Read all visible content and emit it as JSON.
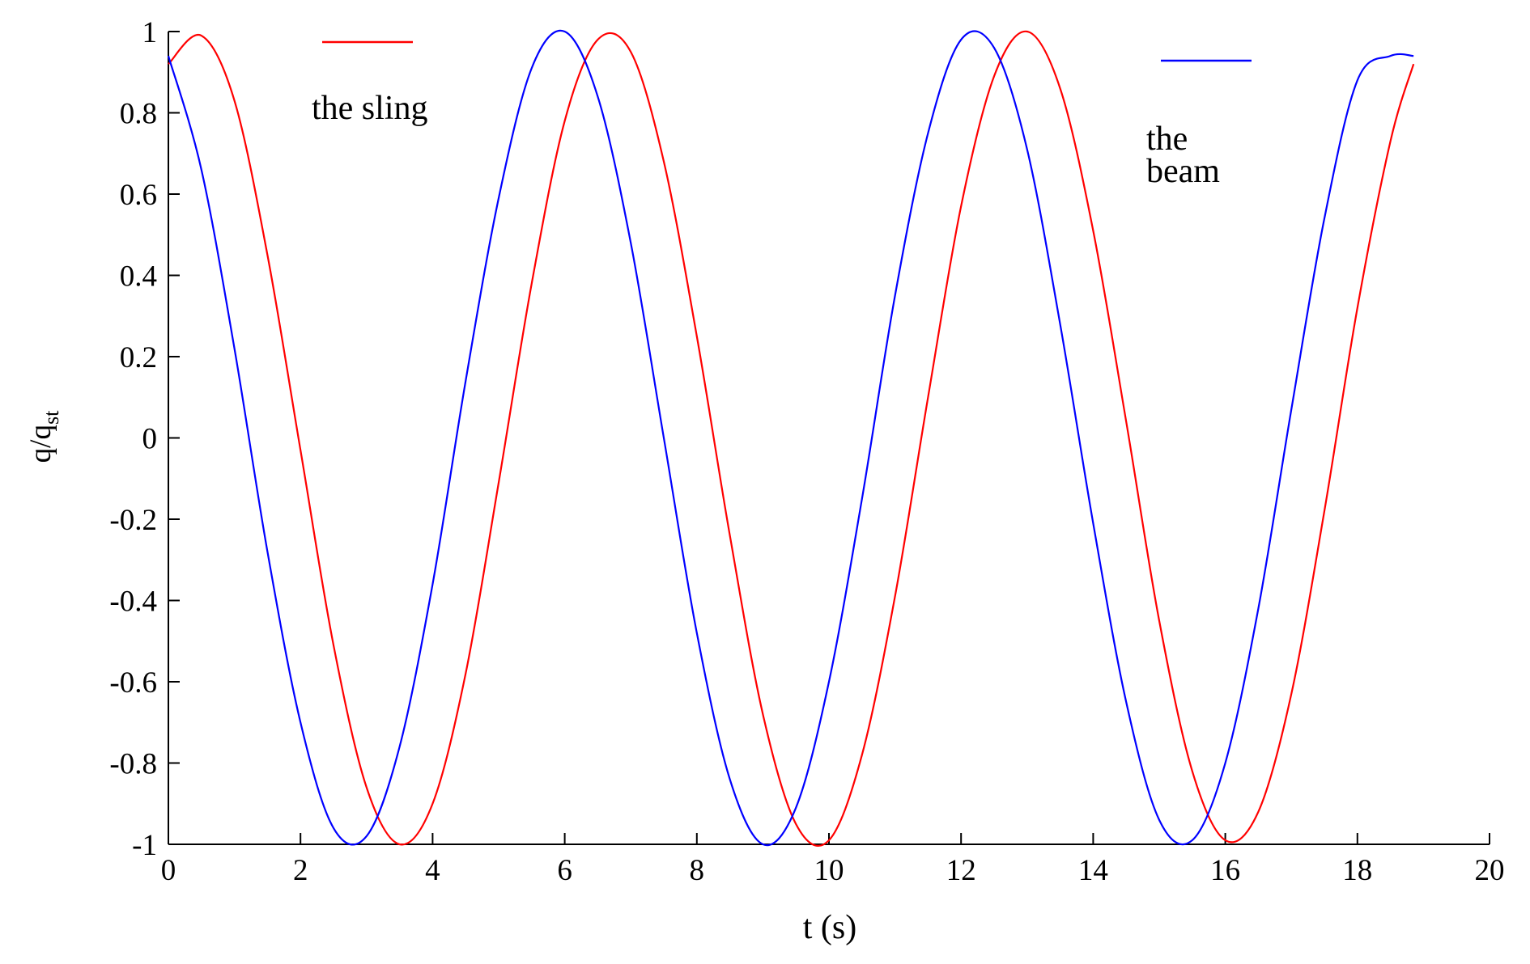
{
  "chart_data": {
    "type": "line",
    "xlabel": "t (s)",
    "ylabel": "q/q",
    "ylabel_subscript": "st",
    "x": [
      0,
      0.5,
      1,
      1.5,
      2,
      2.5,
      3,
      3.5,
      4,
      4.5,
      5,
      5.5,
      6,
      6.5,
      7,
      7.5,
      8,
      8.5,
      9,
      9.5,
      10,
      10.5,
      11,
      11.5,
      12,
      12.5,
      13,
      13.5,
      14,
      14.5,
      15,
      15.5,
      16,
      16.5,
      17,
      17.5,
      18,
      18.5,
      18.85
    ],
    "series": [
      {
        "name": "the sling",
        "color": "#ff0000",
        "values": [
          0.92,
          0.99,
          0.83,
          0.45,
          -0.03,
          -0.51,
          -0.86,
          -1.0,
          -0.9,
          -0.58,
          -0.11,
          0.38,
          0.78,
          0.98,
          0.95,
          0.68,
          0.25,
          -0.24,
          -0.68,
          -0.95,
          -0.99,
          -0.78,
          -0.39,
          0.1,
          0.57,
          0.89,
          1.0,
          0.86,
          0.51,
          0.04,
          -0.45,
          -0.82,
          -0.99,
          -0.92,
          -0.63,
          -0.18,
          0.32,
          0.73,
          0.92
        ]
      },
      {
        "name": "the beam",
        "color": "#0000ff",
        "values": [
          0.94,
          0.66,
          0.22,
          -0.28,
          -0.7,
          -0.96,
          -0.98,
          -0.76,
          -0.36,
          0.14,
          0.59,
          0.91,
          1.0,
          0.84,
          0.48,
          0.0,
          -0.48,
          -0.84,
          -1.0,
          -0.91,
          -0.6,
          -0.15,
          0.35,
          0.75,
          0.98,
          0.96,
          0.71,
          0.28,
          -0.21,
          -0.65,
          -0.94,
          -0.99,
          -0.8,
          -0.42,
          0.07,
          0.54,
          0.88,
          0.94,
          0.94
        ]
      }
    ],
    "xlim": [
      0,
      20
    ],
    "xticks": [
      0,
      2,
      4,
      6,
      8,
      10,
      12,
      14,
      16,
      18,
      20
    ],
    "ylim": [
      -1,
      1
    ],
    "yticks": [
      -1,
      -0.8,
      -0.6,
      -0.4,
      -0.2,
      0,
      0.2,
      0.4,
      0.6,
      0.8,
      1
    ],
    "grid": false
  }
}
